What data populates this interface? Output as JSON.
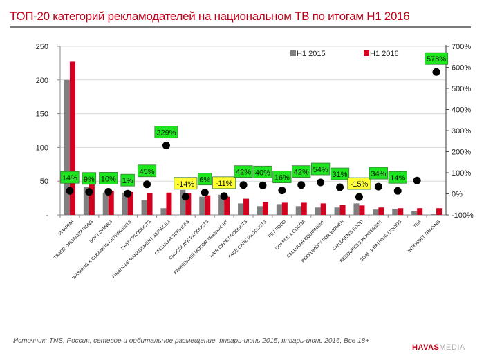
{
  "header": {
    "title": "ТОП-20 категорий рекламодателей на национальном ТВ по итогам  H1 2016"
  },
  "footer": {
    "source": "Источник: TNS, Россия, сетевое и орбитальное размещение, январь-июнь 2015, январь-июнь 2016, Все 18+",
    "logo_bold": "HAVAS",
    "logo_light": "MEDIA"
  },
  "chart_data": {
    "type": "bar",
    "title": "ТОП-20 категорий рекламодателей на национальном ТВ по итогам  H1 2016",
    "xlabel": "",
    "ylabel": "",
    "y2label": "",
    "ylim": [
      0,
      250
    ],
    "y2lim": [
      -100,
      700
    ],
    "yticks": [
      "-",
      "50",
      "100",
      "150",
      "200",
      "250"
    ],
    "y2ticks": [
      "-100%",
      "0%",
      "100%",
      "200%",
      "300%",
      "400%",
      "500%",
      "600%",
      "700%"
    ],
    "grid": true,
    "legend_position": "top-right",
    "colors": {
      "h1_2015": "#7f7f7f",
      "h1_2016": "#d4001f",
      "dot": "#000000",
      "positive_label": "#1ee61e",
      "negative_label": "#ffff33"
    },
    "categories": [
      "PHARMA",
      "TRADE ORGANIZATIONS",
      "SOFT DRINKS",
      "WASHING & CLEANING DETERGENTS",
      "DAIRY PRODUCTS",
      "FINANCES MANAGEMENT SERVICES",
      "CELLULAR SERVICES",
      "CHOCOLATE PRODUCTS",
      "PASSENGER MOTOR TRANSPORT",
      "HAIR CARE PRODUCTS",
      "FACE CARE PRODUCTS",
      "PET FOOD",
      "COFFEE & COCOA",
      "CELLULAR EQUIPMENT",
      "PERFUMERY FOR WOMEN",
      "CHILDREN'S FOOD",
      "RESOURCES IN INTERNET",
      "SOAP & BATHING LIQUIDS",
      "TEA",
      "INTERNET TRADING"
    ],
    "series": [
      {
        "name": "H1 2015",
        "axis": "left",
        "type": "bar",
        "values": [
          200,
          42,
          33,
          33,
          22,
          10,
          37,
          27,
          30,
          17,
          13,
          16,
          13,
          11,
          11,
          17,
          8,
          9,
          6,
          1.5
        ]
      },
      {
        "name": "H1 2016",
        "axis": "left",
        "type": "bar",
        "values": [
          227,
          45,
          36,
          34,
          32,
          33,
          32,
          29,
          27,
          24,
          19,
          18,
          18,
          17,
          15,
          14,
          11,
          10,
          10,
          10
        ]
      },
      {
        "name": "Change",
        "axis": "right",
        "type": "scatter",
        "values": [
          14,
          9,
          10,
          1,
          45,
          229,
          -14,
          6,
          -11,
          42,
          40,
          16,
          42,
          54,
          31,
          -15,
          34,
          14,
          63,
          578
        ],
        "labels": [
          "14%",
          "9%",
          "10%",
          "1%",
          "45%",
          "229%",
          "-14%",
          "6%",
          "-11%",
          "42%",
          "40%",
          "16%",
          "42%",
          "54%",
          "31%",
          "-15%",
          "34%",
          "14%",
          "",
          "578%"
        ]
      }
    ],
    "legend": [
      "H1 2015",
      "H1 2016"
    ]
  }
}
